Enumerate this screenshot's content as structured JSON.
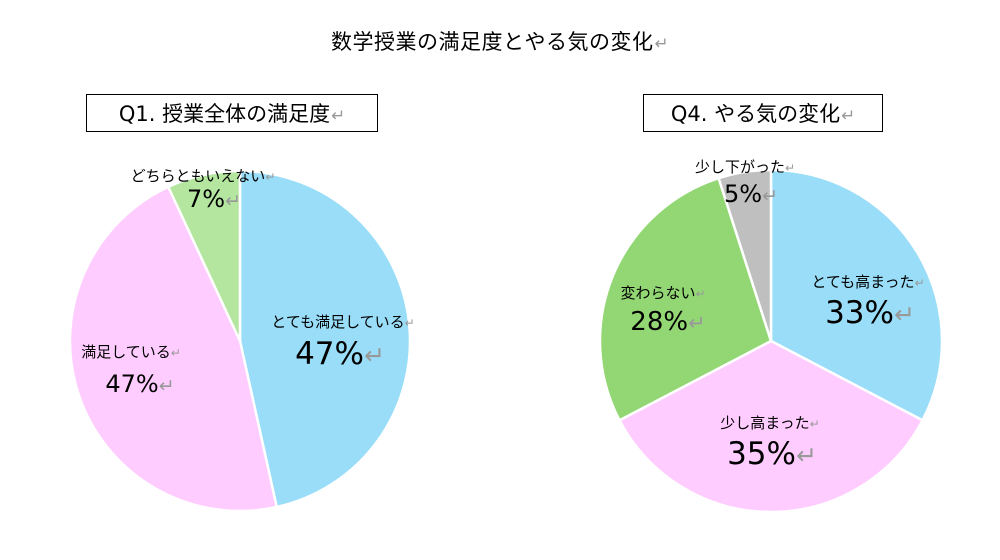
{
  "title": "数学授業の満足度とやる気の変化",
  "return_mark": "↵",
  "chart_data": [
    {
      "type": "pie",
      "title": "Q1. 授業全体の満足度",
      "slices": [
        {
          "label": "とても満足している",
          "value": 47,
          "value_label": "47%",
          "color": "#99DDF8"
        },
        {
          "label": "満足している",
          "value": 47,
          "value_label": "47%",
          "color": "#FFCCFF"
        },
        {
          "label": "どちらともいえない",
          "value": 7,
          "value_label": "7%",
          "color": "#B4E6A0"
        }
      ]
    },
    {
      "type": "pie",
      "title": "Q4. やる気の変化",
      "slices": [
        {
          "label": "とても高まった",
          "value": 33,
          "value_label": "33%",
          "color": "#99DDF8"
        },
        {
          "label": "少し高まった",
          "value": 35,
          "value_label": "35%",
          "color": "#FFCCFF"
        },
        {
          "label": "変わらない",
          "value": 28,
          "value_label": "28%",
          "color": "#92D773"
        },
        {
          "label": "少し下がった",
          "value": 5,
          "value_label": "5%",
          "color": "#BFBFBF"
        }
      ]
    }
  ]
}
